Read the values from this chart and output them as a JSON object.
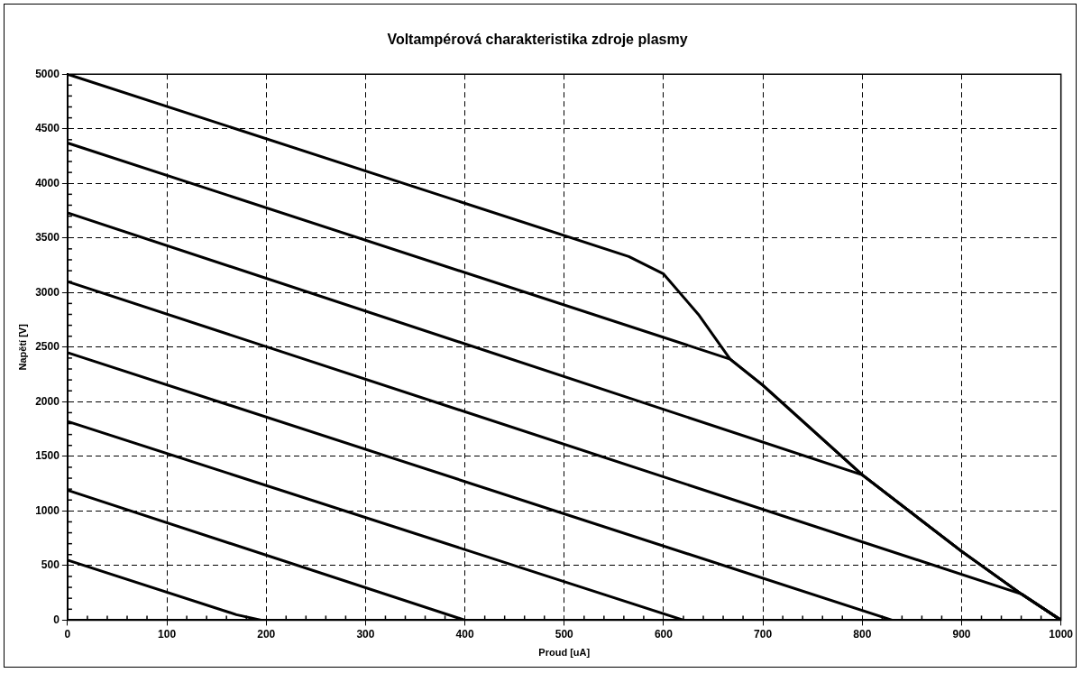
{
  "chart_data": {
    "type": "line",
    "title": "Voltampérová charakteristika zdroje plasmy",
    "xlabel": "Proud [uA]",
    "ylabel": "Napětí [V]",
    "xlim": [
      0,
      1000
    ],
    "ylim": [
      0,
      5000
    ],
    "xticks": [
      0,
      {
        "value": 20,
        "label": null
      },
      {
        "value": 40,
        "label": null
      },
      {
        "value": 60,
        "label": null
      },
      {
        "value": 80,
        "label": null
      },
      100,
      {
        "value": 120,
        "label": null
      },
      {
        "value": 140,
        "label": null
      },
      {
        "value": 160,
        "label": null
      },
      {
        "value": 180,
        "label": null
      },
      200,
      {
        "value": 220,
        "label": null
      },
      {
        "value": 240,
        "label": null
      },
      {
        "value": 260,
        "label": null
      },
      {
        "value": 280,
        "label": null
      },
      300,
      {
        "value": 320,
        "label": null
      },
      {
        "value": 340,
        "label": null
      },
      {
        "value": 360,
        "label": null
      },
      {
        "value": 380,
        "label": null
      },
      400,
      {
        "value": 420,
        "label": null
      },
      {
        "value": 440,
        "label": null
      },
      {
        "value": 460,
        "label": null
      },
      {
        "value": 480,
        "label": null
      },
      500,
      {
        "value": 520,
        "label": null
      },
      {
        "value": 540,
        "label": null
      },
      {
        "value": 560,
        "label": null
      },
      {
        "value": 580,
        "label": null
      },
      600,
      {
        "value": 620,
        "label": null
      },
      {
        "value": 640,
        "label": null
      },
      {
        "value": 660,
        "label": null
      },
      {
        "value": 680,
        "label": null
      },
      700,
      {
        "value": 720,
        "label": null
      },
      {
        "value": 740,
        "label": null
      },
      {
        "value": 760,
        "label": null
      },
      {
        "value": 780,
        "label": null
      },
      800,
      {
        "value": 820,
        "label": null
      },
      {
        "value": 840,
        "label": null
      },
      {
        "value": 860,
        "label": null
      },
      {
        "value": 880,
        "label": null
      },
      900,
      {
        "value": 920,
        "label": null
      },
      {
        "value": 940,
        "label": null
      },
      {
        "value": 960,
        "label": null
      },
      {
        "value": 980,
        "label": null
      },
      1000
    ],
    "yticks": [
      0,
      {
        "value": 100,
        "label": null
      },
      {
        "value": 200,
        "label": null
      },
      {
        "value": 300,
        "label": null
      },
      {
        "value": 400,
        "label": null
      },
      500,
      {
        "value": 600,
        "label": null
      },
      {
        "value": 700,
        "label": null
      },
      {
        "value": 800,
        "label": null
      },
      {
        "value": 900,
        "label": null
      },
      1000,
      {
        "value": 1100,
        "label": null
      },
      {
        "value": 1200,
        "label": null
      },
      {
        "value": 1300,
        "label": null
      },
      {
        "value": 1400,
        "label": null
      },
      1500,
      {
        "value": 1600,
        "label": null
      },
      {
        "value": 1700,
        "label": null
      },
      {
        "value": 1800,
        "label": null
      },
      {
        "value": 1900,
        "label": null
      },
      2000,
      {
        "value": 2100,
        "label": null
      },
      {
        "value": 2200,
        "label": null
      },
      {
        "value": 2300,
        "label": null
      },
      {
        "value": 2400,
        "label": null
      },
      2500,
      {
        "value": 2600,
        "label": null
      },
      {
        "value": 2700,
        "label": null
      },
      {
        "value": 2800,
        "label": null
      },
      {
        "value": 2900,
        "label": null
      },
      3000,
      {
        "value": 3100,
        "label": null
      },
      {
        "value": 3200,
        "label": null
      },
      {
        "value": 3300,
        "label": null
      },
      {
        "value": 3400,
        "label": null
      },
      3500,
      {
        "value": 3600,
        "label": null
      },
      {
        "value": 3700,
        "label": null
      },
      {
        "value": 3800,
        "label": null
      },
      {
        "value": 3900,
        "label": null
      },
      4000,
      {
        "value": 4100,
        "label": null
      },
      {
        "value": 4200,
        "label": null
      },
      {
        "value": 4300,
        "label": null
      },
      {
        "value": 4400,
        "label": null
      },
      4500,
      {
        "value": 4600,
        "label": null
      },
      {
        "value": 4700,
        "label": null
      },
      {
        "value": 4800,
        "label": null
      },
      {
        "value": 4900,
        "label": null
      },
      5000
    ],
    "grid": true,
    "line_style": "solid",
    "series": [
      {
        "color": "#000000",
        "x": [
          0,
          565,
          600,
          635,
          667,
          700,
          800,
          900,
          960,
          1000
        ],
        "values": [
          5000,
          3330,
          3170,
          2800,
          2390,
          2150,
          1330,
          630,
          240,
          0
        ]
      },
      {
        "color": "#000000",
        "x": [
          0,
          667,
          700,
          800,
          900,
          960,
          1000
        ],
        "values": [
          4370,
          2390,
          2150,
          1330,
          630,
          240,
          0
        ]
      },
      {
        "color": "#000000",
        "x": [
          0,
          800,
          900,
          960,
          1000
        ],
        "values": [
          3730,
          1330,
          630,
          240,
          0
        ]
      },
      {
        "color": "#000000",
        "x": [
          0,
          960,
          1000
        ],
        "values": [
          3100,
          240,
          0
        ]
      },
      {
        "color": "#000000",
        "x": [
          0,
          830
        ],
        "values": [
          2450,
          0
        ]
      },
      {
        "color": "#000000",
        "x": [
          0,
          620
        ],
        "values": [
          1820,
          0
        ]
      },
      {
        "color": "#000000",
        "x": [
          0,
          400
        ],
        "values": [
          1190,
          0
        ]
      },
      {
        "color": "#000000",
        "x": [
          0,
          170,
          195
        ],
        "values": [
          550,
          50,
          0
        ]
      }
    ]
  }
}
